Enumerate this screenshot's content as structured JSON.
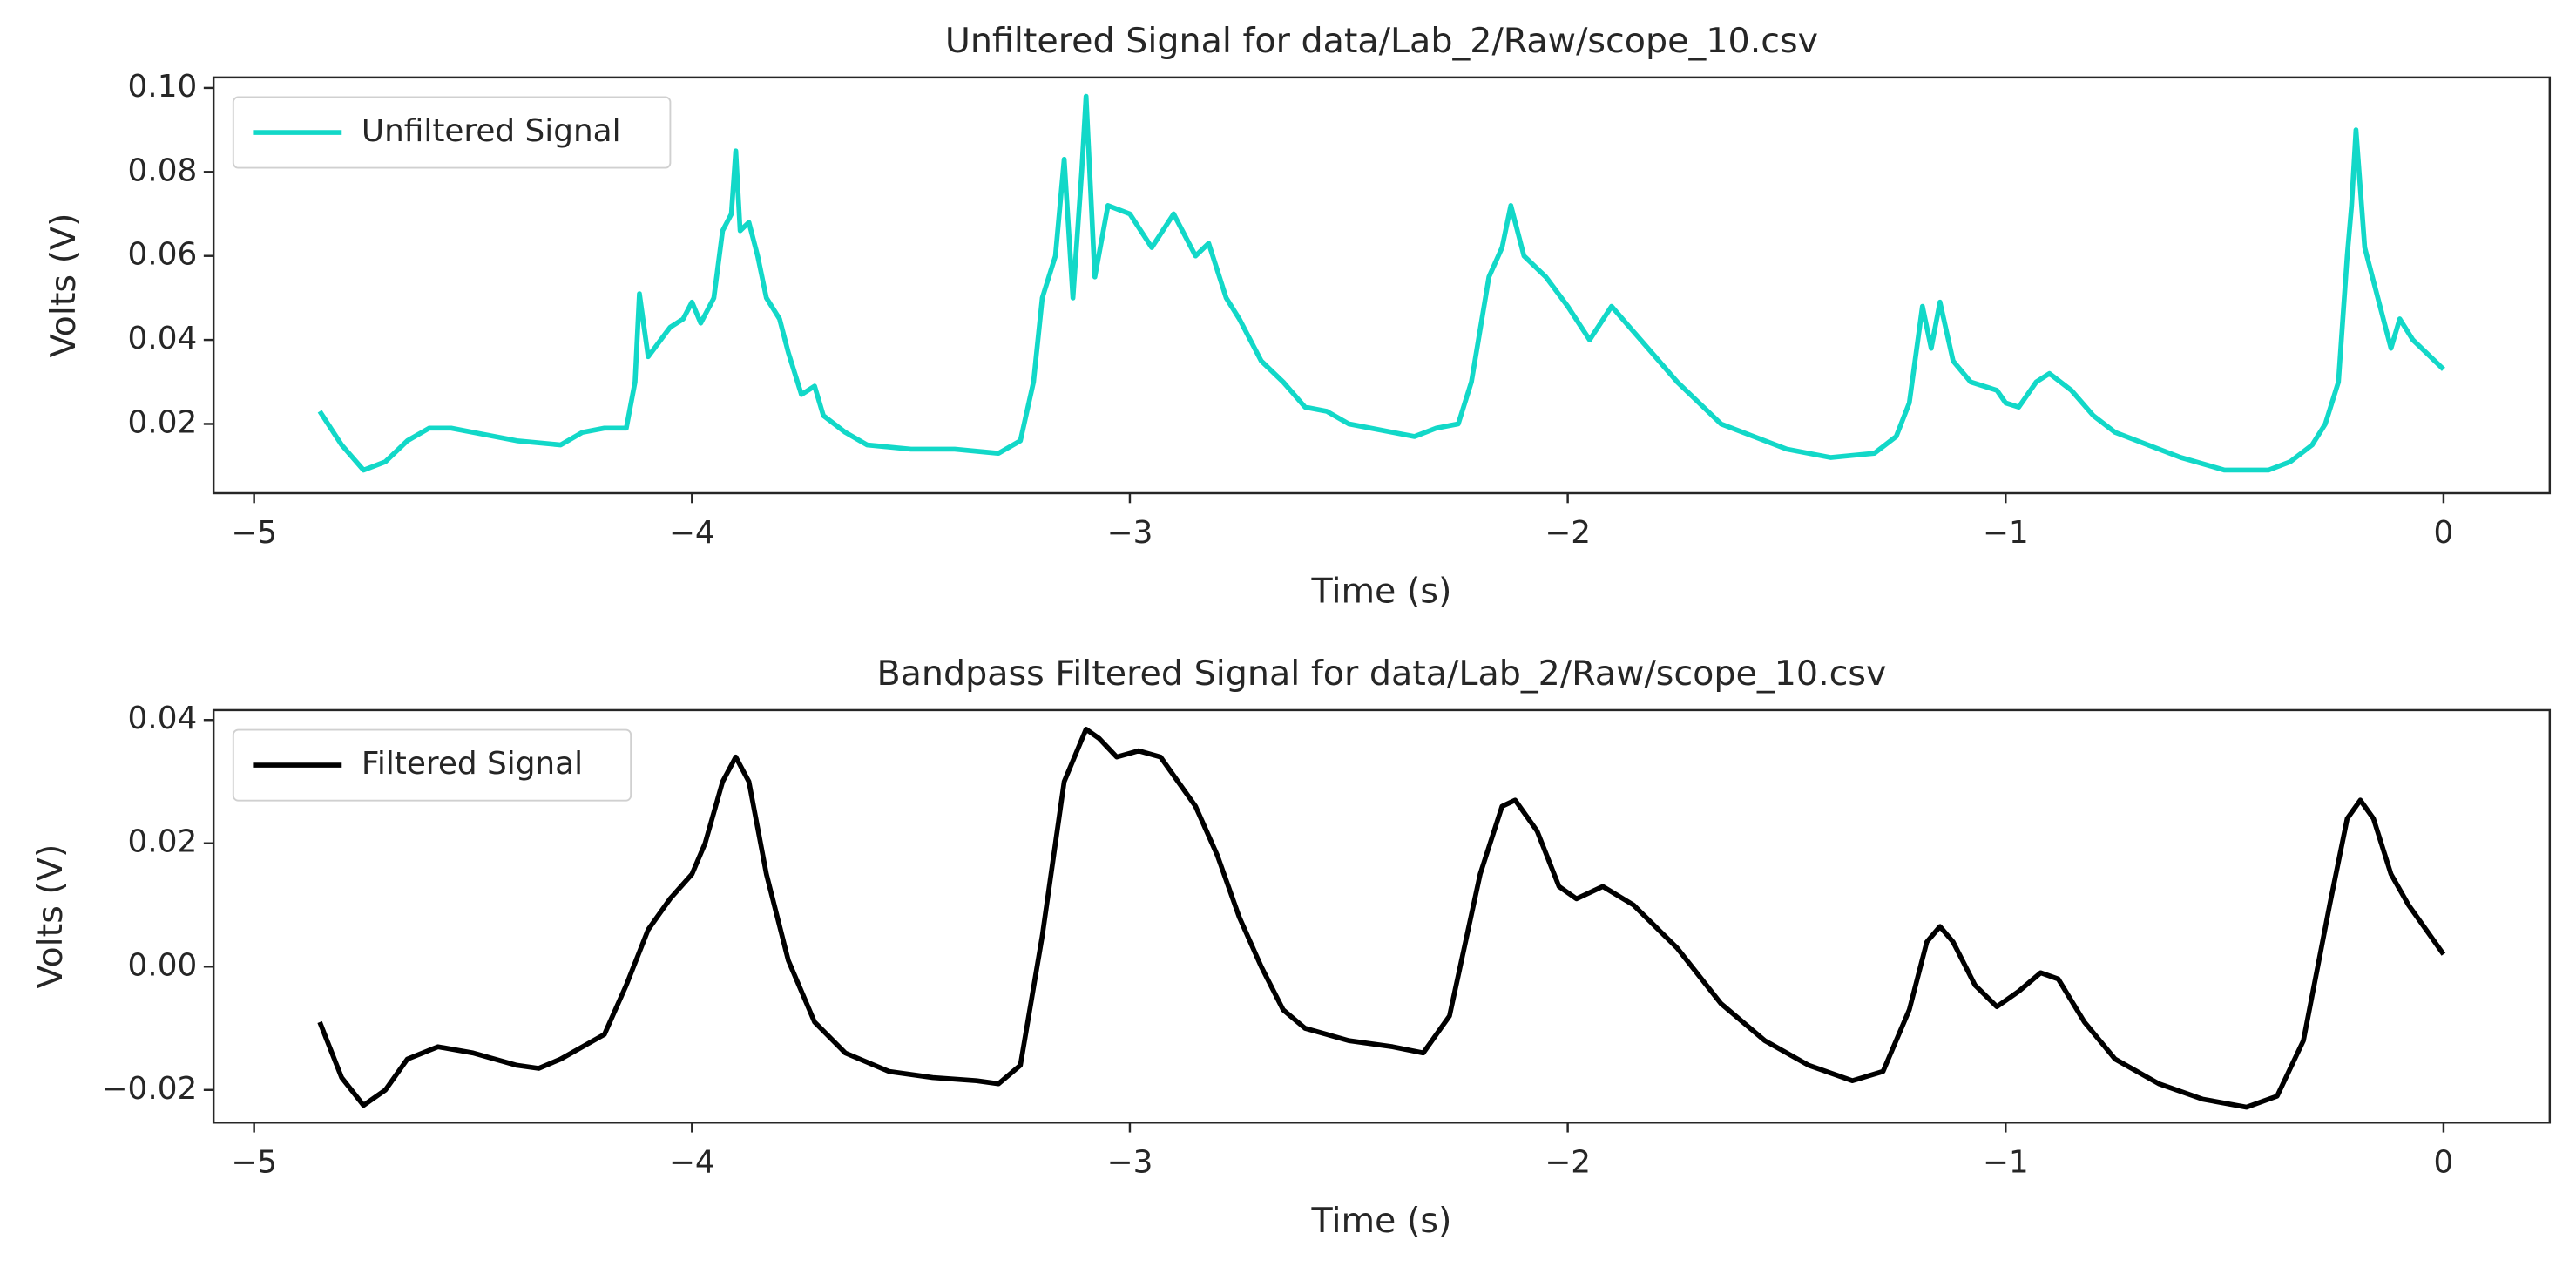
{
  "chart_data": [
    {
      "type": "line",
      "title": "Unfiltered Signal for data/Lab_2/Raw/scope_10.csv",
      "x_label": "Time (s)",
      "y_label": "Volts (V)",
      "xlim": [
        -5.0925,
        0.2425
      ],
      "ylim": [
        0.0035,
        0.1025
      ],
      "xticks": [
        {
          "value": -5,
          "label": "−5"
        },
        {
          "value": -4,
          "label": "−4"
        },
        {
          "value": -3,
          "label": "−3"
        },
        {
          "value": -2,
          "label": "−2"
        },
        {
          "value": -1,
          "label": "−1"
        },
        0
      ],
      "yticks": [
        0.02,
        0.04,
        0.06,
        0.08,
        {
          "value": 0.1,
          "label": "0.10"
        }
      ],
      "legend": "upper left",
      "grid": false,
      "x": [
        -4.85,
        -4.8,
        -4.75,
        -4.7,
        -4.65,
        -4.6,
        -4.55,
        -4.5,
        -4.4,
        -4.3,
        -4.25,
        -4.2,
        -4.15,
        -4.13,
        -4.12,
        -4.1,
        -4.05,
        -4.02,
        -4.0,
        -3.98,
        -3.95,
        -3.93,
        -3.91,
        -3.9,
        -3.89,
        -3.87,
        -3.85,
        -3.83,
        -3.8,
        -3.78,
        -3.75,
        -3.72,
        -3.7,
        -3.65,
        -3.6,
        -3.5,
        -3.4,
        -3.3,
        -3.25,
        -3.22,
        -3.2,
        -3.17,
        -3.15,
        -3.13,
        -3.11,
        -3.1,
        -3.08,
        -3.05,
        -3.0,
        -2.95,
        -2.9,
        -2.85,
        -2.82,
        -2.78,
        -2.75,
        -2.7,
        -2.65,
        -2.6,
        -2.55,
        -2.5,
        -2.45,
        -2.4,
        -2.35,
        -2.3,
        -2.25,
        -2.22,
        -2.18,
        -2.15,
        -2.13,
        -2.1,
        -2.05,
        -2.0,
        -1.95,
        -1.9,
        -1.85,
        -1.8,
        -1.75,
        -1.7,
        -1.65,
        -1.6,
        -1.5,
        -1.4,
        -1.3,
        -1.25,
        -1.22,
        -1.19,
        -1.17,
        -1.15,
        -1.12,
        -1.08,
        -1.02,
        -1.0,
        -0.97,
        -0.93,
        -0.9,
        -0.85,
        -0.8,
        -0.75,
        -0.7,
        -0.6,
        -0.5,
        -0.4,
        -0.35,
        -0.3,
        -0.27,
        -0.24,
        -0.22,
        -0.21,
        -0.2,
        -0.18,
        -0.15,
        -0.12,
        -0.1,
        -0.07,
        -0.03,
        0.0
      ],
      "series": [
        {
          "name": "Unfiltered Signal",
          "color": "#12d8c8",
          "values": [
            0.023,
            0.015,
            0.009,
            0.011,
            0.016,
            0.019,
            0.019,
            0.018,
            0.016,
            0.015,
            0.018,
            0.019,
            0.019,
            0.03,
            0.051,
            0.036,
            0.043,
            0.045,
            0.049,
            0.044,
            0.05,
            0.066,
            0.07,
            0.085,
            0.066,
            0.068,
            0.06,
            0.05,
            0.045,
            0.037,
            0.027,
            0.029,
            0.022,
            0.018,
            0.015,
            0.014,
            0.014,
            0.013,
            0.016,
            0.03,
            0.05,
            0.06,
            0.083,
            0.05,
            0.08,
            0.098,
            0.055,
            0.072,
            0.07,
            0.062,
            0.07,
            0.06,
            0.063,
            0.05,
            0.045,
            0.035,
            0.03,
            0.024,
            0.023,
            0.02,
            0.019,
            0.018,
            0.017,
            0.019,
            0.02,
            0.03,
            0.055,
            0.062,
            0.072,
            0.06,
            0.055,
            0.048,
            0.04,
            0.048,
            0.042,
            0.036,
            0.03,
            0.025,
            0.02,
            0.018,
            0.014,
            0.012,
            0.013,
            0.017,
            0.025,
            0.048,
            0.038,
            0.049,
            0.035,
            0.03,
            0.028,
            0.025,
            0.024,
            0.03,
            0.032,
            0.028,
            0.022,
            0.018,
            0.016,
            0.012,
            0.009,
            0.009,
            0.011,
            0.015,
            0.02,
            0.03,
            0.06,
            0.072,
            0.09,
            0.062,
            0.05,
            0.038,
            0.045,
            0.04,
            0.036,
            0.033
          ]
        }
      ]
    },
    {
      "type": "line",
      "title": "Bandpass Filtered Signal for data/Lab_2/Raw/scope_10.csv",
      "x_label": "Time (s)",
      "y_label": "Volts (V)",
      "xlim": [
        -5.0925,
        0.2425
      ],
      "ylim": [
        -0.0253,
        0.0416
      ],
      "xticks": [
        {
          "value": -5,
          "label": "−5"
        },
        {
          "value": -4,
          "label": "−4"
        },
        {
          "value": -3,
          "label": "−3"
        },
        {
          "value": -2,
          "label": "−2"
        },
        {
          "value": -1,
          "label": "−1"
        },
        0
      ],
      "yticks": [
        {
          "value": -0.02,
          "label": "−0.02"
        },
        {
          "value": 0,
          "label": "0.00"
        },
        0.02,
        0.04
      ],
      "legend": "upper left",
      "grid": false,
      "x": [
        -4.85,
        -4.8,
        -4.75,
        -4.7,
        -4.65,
        -4.58,
        -4.5,
        -4.4,
        -4.35,
        -4.3,
        -4.2,
        -4.15,
        -4.1,
        -4.05,
        -4.0,
        -3.97,
        -3.93,
        -3.9,
        -3.87,
        -3.83,
        -3.78,
        -3.72,
        -3.65,
        -3.55,
        -3.45,
        -3.35,
        -3.3,
        -3.25,
        -3.2,
        -3.15,
        -3.1,
        -3.07,
        -3.03,
        -2.98,
        -2.93,
        -2.85,
        -2.8,
        -2.75,
        -2.7,
        -2.65,
        -2.6,
        -2.5,
        -2.4,
        -2.33,
        -2.27,
        -2.2,
        -2.15,
        -2.12,
        -2.07,
        -2.02,
        -1.98,
        -1.92,
        -1.85,
        -1.75,
        -1.65,
        -1.55,
        -1.45,
        -1.35,
        -1.28,
        -1.22,
        -1.18,
        -1.15,
        -1.12,
        -1.07,
        -1.02,
        -0.97,
        -0.92,
        -0.88,
        -0.82,
        -0.75,
        -0.65,
        -0.55,
        -0.45,
        -0.38,
        -0.32,
        -0.26,
        -0.22,
        -0.19,
        -0.16,
        -0.12,
        -0.08,
        -0.03,
        0.0
      ],
      "series": [
        {
          "name": "Filtered Signal",
          "color": "#000000",
          "values": [
            -0.009,
            -0.018,
            -0.0225,
            -0.02,
            -0.015,
            -0.013,
            -0.014,
            -0.016,
            -0.0165,
            -0.015,
            -0.011,
            -0.003,
            0.006,
            0.011,
            0.015,
            0.02,
            0.03,
            0.034,
            0.03,
            0.015,
            0.001,
            -0.009,
            -0.014,
            -0.017,
            -0.018,
            -0.0185,
            -0.019,
            -0.016,
            0.005,
            0.03,
            0.0385,
            0.037,
            0.034,
            0.035,
            0.034,
            0.026,
            0.018,
            0.008,
            0.0,
            -0.007,
            -0.01,
            -0.012,
            -0.013,
            -0.014,
            -0.008,
            0.015,
            0.026,
            0.027,
            0.022,
            0.013,
            0.011,
            0.013,
            0.01,
            0.003,
            -0.006,
            -0.012,
            -0.016,
            -0.0185,
            -0.017,
            -0.007,
            0.004,
            0.0065,
            0.004,
            -0.003,
            -0.0065,
            -0.004,
            -0.001,
            -0.002,
            -0.009,
            -0.015,
            -0.019,
            -0.0215,
            -0.0228,
            -0.021,
            -0.012,
            0.01,
            0.024,
            0.027,
            0.024,
            0.015,
            0.01,
            0.005,
            0.002
          ]
        }
      ]
    }
  ]
}
